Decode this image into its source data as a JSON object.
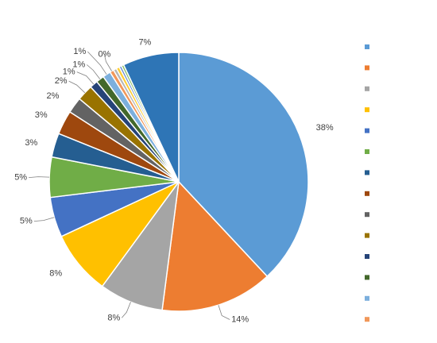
{
  "chart_data": {
    "type": "pie",
    "title": "",
    "label_format": "percent",
    "slices": [
      {
        "label": "",
        "value": 38,
        "display": "38%",
        "color": "#5B9BD5"
      },
      {
        "label": "",
        "value": 14,
        "display": "14%",
        "color": "#ED7D31"
      },
      {
        "label": "",
        "value": 8,
        "display": "8%",
        "color": "#A5A5A5"
      },
      {
        "label": "",
        "value": 8,
        "display": "8%",
        "color": "#FFC000"
      },
      {
        "label": "",
        "value": 5,
        "display": "5%",
        "color": "#4472C4"
      },
      {
        "label": "",
        "value": 5,
        "display": "5%",
        "color": "#70AD47"
      },
      {
        "label": "",
        "value": 3,
        "display": "3%",
        "color": "#255E91"
      },
      {
        "label": "",
        "value": 3,
        "display": "3%",
        "color": "#9E480E"
      },
      {
        "label": "",
        "value": 2,
        "display": "2%",
        "color": "#636363"
      },
      {
        "label": "",
        "value": 2,
        "display": "2%",
        "color": "#997300"
      },
      {
        "label": "",
        "value": 1,
        "display": "1%",
        "color": "#264478"
      },
      {
        "label": "",
        "value": 1,
        "display": "1%",
        "color": "#43682B"
      },
      {
        "label": "",
        "value": 1,
        "display": "1%",
        "color": "#7CAFDD"
      },
      {
        "label": "",
        "value": 0.5,
        "display": "0%",
        "color": "#F1975A"
      },
      {
        "label": "",
        "value": 0.4,
        "display": "",
        "color": "#B7B7B7"
      },
      {
        "label": "",
        "value": 0.4,
        "display": "",
        "color": "#FFCD33"
      },
      {
        "label": "",
        "value": 0.3,
        "display": "",
        "color": "#698ED0"
      },
      {
        "label": "",
        "value": 0.3,
        "display": "",
        "color": "#8CC168"
      },
      {
        "label": "",
        "value": 7,
        "display": "7%",
        "color": "#2E75B6"
      }
    ],
    "legend": {
      "placement": "right",
      "marker_colors": [
        "#5B9BD5",
        "#ED7D31",
        "#A5A5A5",
        "#FFC000",
        "#4472C4",
        "#70AD47",
        "#255E91",
        "#9E480E",
        "#636363",
        "#997300",
        "#264478",
        "#43682B",
        "#7CAFDD",
        "#F1975A"
      ]
    }
  }
}
